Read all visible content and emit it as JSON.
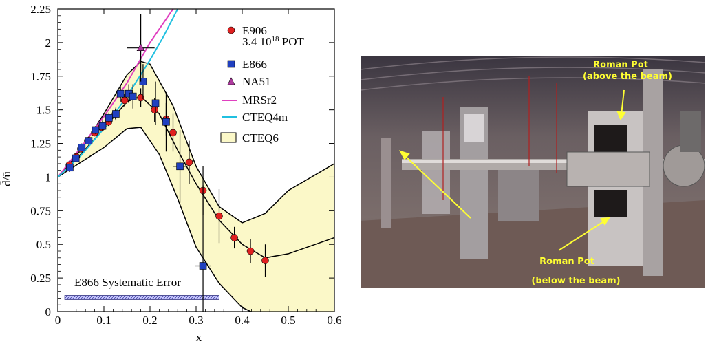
{
  "chart_data": {
    "type": "scatter",
    "title": "",
    "xlabel": "x",
    "ylabel": "d̄/ū",
    "xlim": [
      0,
      0.6
    ],
    "ylim": [
      0,
      2.25
    ],
    "x_ticks": [
      "0",
      "0.1",
      "0.2",
      "0.3",
      "0.4",
      "0.5",
      "0.6"
    ],
    "y_ticks": [
      "0",
      "0.25",
      "0.5",
      "0.75",
      "1",
      "1.25",
      "1.5",
      "1.75",
      "2",
      "2.25"
    ],
    "reference_line_y": 1,
    "legend_position": "top-right",
    "series": [
      {
        "name": "E906",
        "name_line2": "3.4 10",
        "name_sup": "18",
        "name_suffix": " POT",
        "marker": "circle",
        "color": "#e02020",
        "points": [
          [
            0.025,
            1.09
          ],
          [
            0.04,
            1.15
          ],
          [
            0.05,
            1.21
          ],
          [
            0.065,
            1.27
          ],
          [
            0.08,
            1.33
          ],
          [
            0.095,
            1.37
          ],
          [
            0.11,
            1.41
          ],
          [
            0.125,
            1.47
          ],
          [
            0.145,
            1.57
          ],
          [
            0.18,
            1.59
          ],
          [
            0.21,
            1.5
          ],
          [
            0.235,
            1.43
          ],
          [
            0.25,
            1.33
          ],
          [
            0.285,
            1.11
          ],
          [
            0.315,
            0.9
          ],
          [
            0.35,
            0.71
          ],
          [
            0.383,
            0.55
          ],
          [
            0.418,
            0.45
          ],
          [
            0.45,
            0.38
          ]
        ],
        "yerr": [
          0.02,
          0.02,
          0.02,
          0.02,
          0.02,
          0.02,
          0.03,
          0.04,
          0.05,
          0.07,
          0.09,
          0.12,
          0.14,
          0.16,
          0.18,
          0.2,
          0.08,
          0.09,
          0.12
        ]
      },
      {
        "name": "E866",
        "marker": "square",
        "color": "#2040c0",
        "points": [
          [
            0.026,
            1.07
          ],
          [
            0.039,
            1.14
          ],
          [
            0.052,
            1.22
          ],
          [
            0.067,
            1.27
          ],
          [
            0.082,
            1.35
          ],
          [
            0.097,
            1.38
          ],
          [
            0.111,
            1.44
          ],
          [
            0.126,
            1.47
          ],
          [
            0.136,
            1.62
          ],
          [
            0.154,
            1.62
          ],
          [
            0.163,
            1.6
          ],
          [
            0.185,
            1.71
          ],
          [
            0.212,
            1.55
          ],
          [
            0.235,
            1.41
          ],
          [
            0.265,
            1.08
          ],
          [
            0.315,
            0.34
          ]
        ],
        "yerr": [
          0.03,
          0.03,
          0.03,
          0.03,
          0.03,
          0.04,
          0.04,
          0.05,
          0.06,
          0.07,
          0.09,
          0.13,
          0.16,
          0.22,
          0.27,
          0.6
        ],
        "xerr": [
          0,
          0,
          0,
          0,
          0,
          0,
          0,
          0,
          0,
          0,
          0,
          0,
          0,
          0,
          0.015,
          0.017
        ]
      },
      {
        "name": "NA51",
        "marker": "triangle",
        "color": "#b03aa0",
        "points": [
          [
            0.18,
            1.96
          ]
        ],
        "yerr": [
          0.25
        ],
        "xerr": [
          0.03
        ]
      },
      {
        "name": "MRSr2",
        "marker": "line",
        "color": "#e040c0",
        "points": [
          [
            0.0,
            1.0
          ],
          [
            0.05,
            1.22
          ],
          [
            0.1,
            1.45
          ],
          [
            0.15,
            1.7
          ],
          [
            0.2,
            2.0
          ],
          [
            0.25,
            2.25
          ]
        ]
      },
      {
        "name": "CTEQ4m",
        "marker": "line",
        "color": "#20c0e0",
        "points": [
          [
            0.0,
            1.0
          ],
          [
            0.05,
            1.16
          ],
          [
            0.1,
            1.36
          ],
          [
            0.15,
            1.6
          ],
          [
            0.2,
            1.87
          ],
          [
            0.23,
            2.05
          ],
          [
            0.26,
            2.25
          ]
        ]
      },
      {
        "name": "CTEQ6",
        "marker": "band",
        "color": "#fbf8c8",
        "points": [
          [
            0.0,
            1.0
          ],
          [
            0.05,
            1.2
          ],
          [
            0.1,
            1.47
          ],
          [
            0.15,
            1.76
          ],
          [
            0.18,
            1.86
          ],
          [
            0.2,
            1.84
          ],
          [
            0.25,
            1.53
          ],
          [
            0.3,
            1.08
          ],
          [
            0.35,
            0.78
          ],
          [
            0.4,
            0.66
          ],
          [
            0.45,
            0.73
          ],
          [
            0.5,
            0.9
          ],
          [
            0.6,
            1.1
          ]
        ],
        "center": [
          [
            0.0,
            1.0
          ],
          [
            0.05,
            1.17
          ],
          [
            0.1,
            1.36
          ],
          [
            0.15,
            1.56
          ],
          [
            0.18,
            1.6
          ],
          [
            0.22,
            1.47
          ],
          [
            0.26,
            1.2
          ],
          [
            0.3,
            0.95
          ],
          [
            0.35,
            0.68
          ],
          [
            0.4,
            0.5
          ],
          [
            0.45,
            0.4
          ],
          [
            0.5,
            0.43
          ],
          [
            0.6,
            0.55
          ]
        ],
        "lower": [
          [
            0.0,
            1.0
          ],
          [
            0.05,
            1.11
          ],
          [
            0.1,
            1.22
          ],
          [
            0.15,
            1.36
          ],
          [
            0.18,
            1.37
          ],
          [
            0.22,
            1.17
          ],
          [
            0.26,
            0.84
          ],
          [
            0.3,
            0.48
          ],
          [
            0.35,
            0.21
          ],
          [
            0.4,
            0.03
          ],
          [
            0.45,
            -0.05
          ],
          [
            0.6,
            -0.05
          ]
        ]
      }
    ],
    "systematic_error": {
      "label": "E866 Systematic Error",
      "x": [
        0.015,
        0.35
      ],
      "y": [
        0.09,
        0.12
      ]
    }
  },
  "photo": {
    "label_top_line1": "Roman Pot",
    "label_top_line2": "(above the beam)",
    "label_bottom_line1": "Roman Pot",
    "label_bottom_line2": "(below the beam)"
  }
}
